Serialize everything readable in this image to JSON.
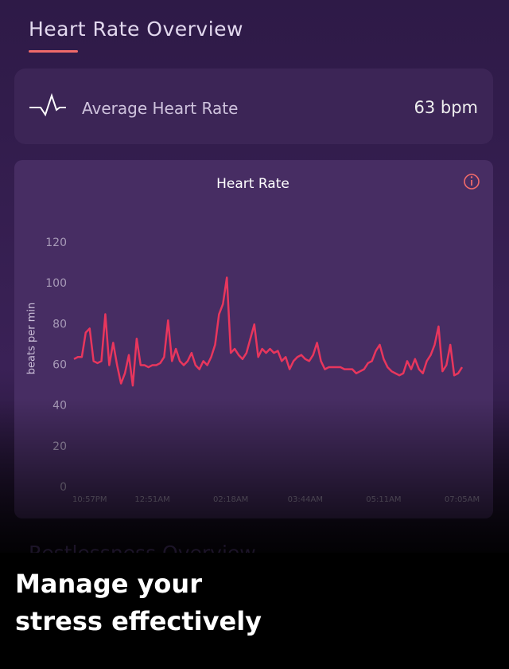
{
  "header": {
    "title": "Heart Rate Overview"
  },
  "summary": {
    "label": "Average Heart Rate",
    "value": "63 bpm"
  },
  "chart_data": {
    "type": "line",
    "title": "Heart Rate",
    "y_label": "beats per min",
    "categories": [
      null,
      null,
      null,
      null,
      "10:57PM",
      null,
      null,
      null,
      null,
      null,
      null,
      null,
      null,
      null,
      null,
      null,
      null,
      null,
      null,
      null,
      "12:51AM",
      null,
      null,
      null,
      null,
      null,
      null,
      null,
      null,
      null,
      null,
      null,
      null,
      null,
      null,
      null,
      null,
      null,
      null,
      null,
      "02:18AM",
      null,
      null,
      null,
      null,
      null,
      null,
      null,
      null,
      null,
      null,
      null,
      null,
      null,
      null,
      null,
      null,
      null,
      null,
      "03:44AM",
      null,
      null,
      null,
      null,
      null,
      null,
      null,
      null,
      null,
      null,
      null,
      null,
      null,
      null,
      null,
      null,
      null,
      null,
      null,
      "05:11AM",
      null,
      null,
      null,
      null,
      null,
      null,
      null,
      null,
      null,
      null,
      null,
      null,
      null,
      null,
      null,
      null,
      null,
      null,
      null,
      "07:05AM"
    ],
    "series": [
      {
        "name": "Heart Rate",
        "color": "#e8365d",
        "values": [
          63,
          64,
          64,
          76,
          78,
          62,
          61,
          62,
          85,
          60,
          71,
          60,
          51,
          56,
          65,
          50,
          73,
          60,
          60,
          59,
          60,
          60,
          61,
          64,
          82,
          62,
          68,
          62,
          60,
          62,
          66,
          60,
          58,
          62,
          60,
          64,
          70,
          85,
          90,
          103,
          66,
          68,
          65,
          63,
          66,
          73,
          80,
          64,
          68,
          66,
          68,
          66,
          67,
          62,
          64,
          58,
          62,
          64,
          65,
          63,
          62,
          65,
          71,
          62,
          58,
          59,
          59,
          59,
          59,
          58,
          58,
          58,
          56,
          57,
          58,
          61,
          62,
          67,
          70,
          63,
          59,
          57,
          56,
          55,
          56,
          62,
          58,
          63,
          58,
          56,
          62,
          65,
          70,
          79,
          57,
          60,
          70,
          55,
          56,
          59
        ]
      }
    ],
    "ylim": [
      0,
      120
    ],
    "yticks": [
      0,
      20,
      40,
      60,
      80,
      100,
      120
    ]
  },
  "next_section": {
    "title": "Restlessness Overview"
  },
  "caption": [
    "Manage your",
    "stress effectively"
  ]
}
